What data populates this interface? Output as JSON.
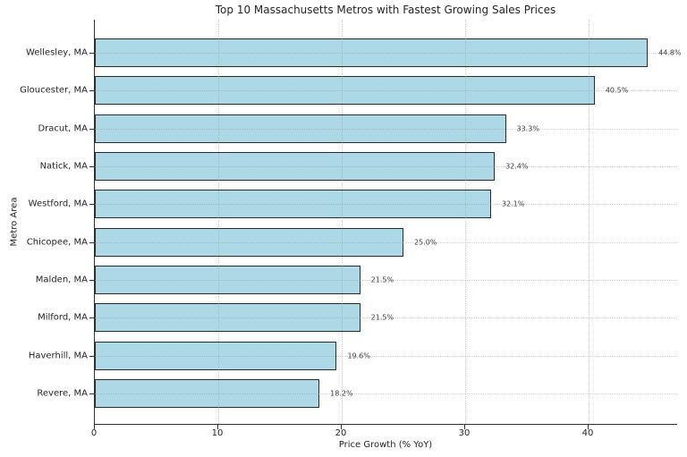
{
  "window": {
    "background": "#ffffff"
  },
  "chart_data": {
    "type": "bar",
    "orientation": "horizontal",
    "title": "Top 10 Massachusetts Metros with Fastest Growing Sales Prices",
    "xlabel": "Price Growth (% YoY)",
    "ylabel": "Metro Area",
    "categories": [
      "Wellesley, MA",
      "Gloucester, MA",
      "Dracut, MA",
      "Natick, MA",
      "Westford, MA",
      "Chicopee, MA",
      "Malden, MA",
      "Milford, MA",
      "Haverhill, MA",
      "Revere, MA"
    ],
    "values": [
      44.8,
      40.5,
      33.3,
      32.4,
      32.1,
      25.0,
      21.5,
      21.5,
      19.6,
      18.2
    ],
    "value_labels": [
      "44.8%",
      "40.5%",
      "33.3%",
      "32.4%",
      "32.1%",
      "25.0%",
      "21.5%",
      "21.5%",
      "19.6%",
      "18.2%"
    ],
    "x_tick_labels": [
      "0",
      "10",
      "20",
      "30",
      "40"
    ],
    "x_tick_values": [
      0,
      10,
      20,
      30,
      40
    ],
    "xlim": [
      0,
      47.25
    ],
    "grid": {
      "style": "dotted",
      "axis": "both"
    },
    "legend": "none",
    "colors": {
      "bar_fill": "#ADD8E6",
      "bar_edge": "#2b2b2b",
      "grid": "#969696",
      "axis": "#333333",
      "tick_text": "#262626",
      "value_text": "#3d3d3d"
    }
  }
}
